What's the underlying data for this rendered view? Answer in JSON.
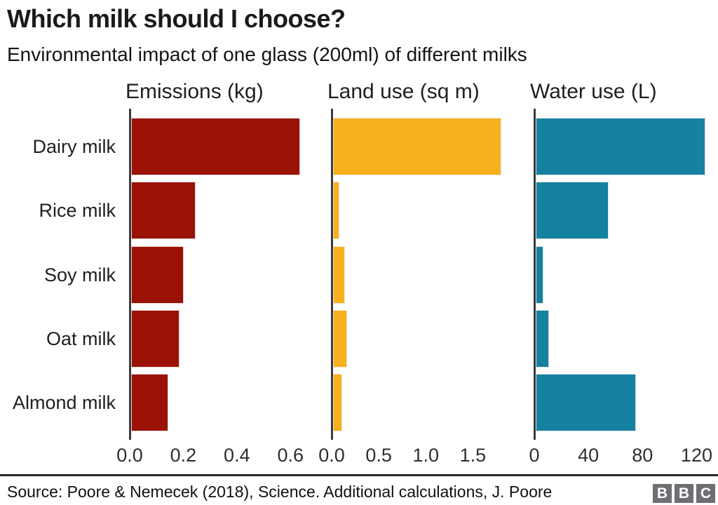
{
  "header": {
    "title": "Which milk should I choose?",
    "subtitle": "Environmental impact of one glass (200ml) of different milks"
  },
  "footer": {
    "source": "Source: Poore & Nemecek (2018), Science. Additional calculations, J. Poore",
    "logo_letters": [
      "B",
      "B",
      "C"
    ]
  },
  "chart_data": {
    "type": "bar",
    "orientation": "horizontal",
    "title": "Which milk should I choose?",
    "subtitle": "Environmental impact of one glass (200ml) of different milks",
    "categories": [
      "Dairy milk",
      "Rice milk",
      "Soy milk",
      "Oat milk",
      "Almond milk"
    ],
    "grid": false,
    "legend": false,
    "colors": {
      "emissions": "#9a1105",
      "land_use": "#f9b01e",
      "water_use": "#1481a0",
      "axis": "#3b3b3b"
    },
    "panels": [
      {
        "title": "Emissions (kg)",
        "values": [
          0.63,
          0.24,
          0.195,
          0.18,
          0.14
        ],
        "color": "#9a1105",
        "xlim": [
          0,
          0.67
        ],
        "ticks": [
          0,
          0.2,
          0.4,
          0.6
        ],
        "tick_labels": [
          "0.0",
          "0.2",
          "0.4",
          "0.6"
        ]
      },
      {
        "title": "Land use (sq m)",
        "values": [
          1.79,
          0.07,
          0.13,
          0.15,
          0.1
        ],
        "color": "#f9b01e",
        "xlim": [
          0,
          1.81
        ],
        "ticks": [
          0,
          0.5,
          1.0,
          1.5
        ],
        "tick_labels": [
          "0.0",
          "0.5",
          "1.0",
          "1.5"
        ]
      },
      {
        "title": "Water use (L)",
        "values": [
          125.6,
          54,
          5.6,
          9.6,
          74.3
        ],
        "color": "#1481a0",
        "xlim": [
          0,
          126.5
        ],
        "ticks": [
          0,
          40,
          80,
          120
        ],
        "tick_labels": [
          "0",
          "40",
          "80",
          "120"
        ]
      }
    ]
  }
}
